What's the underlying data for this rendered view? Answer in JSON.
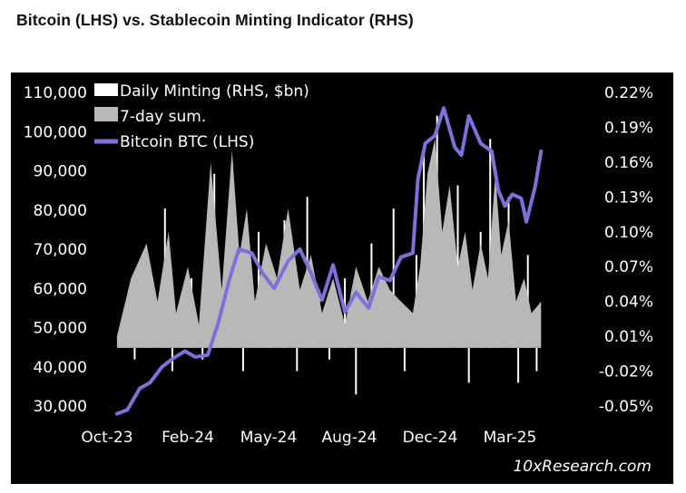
{
  "title": "Bitcoin (LHS) vs. Stablecoin Minting Indicator (RHS)",
  "source": "10xResearch.com",
  "colors": {
    "background": "#000000",
    "btc_line": "#7b72d9",
    "sum_area": "#b8b8b8",
    "daily_bars": "#ffffff"
  },
  "chart_data": {
    "type": "line",
    "left_axis": {
      "min": 30000,
      "max": 110000,
      "ticks": [
        "110,000",
        "100,000",
        "90,000",
        "80,000",
        "70,000",
        "60,000",
        "50,000",
        "40,000",
        "30,000"
      ]
    },
    "right_axis": {
      "min": -0.05,
      "max": 0.22,
      "ticks": [
        "0.22%",
        "0.19%",
        "0.16%",
        "0.13%",
        "0.10%",
        "0.07%",
        "0.04%",
        "0.01%",
        "-0.02%",
        "-0.05%"
      ]
    },
    "x_axis": {
      "ticks": [
        "Oct-23",
        "Feb-24",
        "May-24",
        "Aug-24",
        "Dec-24",
        "Mar-25"
      ]
    },
    "legend": {
      "placement": "top-left",
      "entries": [
        "Daily Minting (RHS, $bn)",
        "7-day sum.",
        "Bitcoin BTC (LHS)"
      ]
    },
    "series": [
      {
        "name": "Bitcoin BTC (LHS)",
        "axis": "left",
        "x": [
          "2023-10-01",
          "2023-10-15",
          "2023-11-01",
          "2023-11-15",
          "2023-12-01",
          "2023-12-15",
          "2024-01-01",
          "2024-01-15",
          "2024-02-01",
          "2024-02-15",
          "2024-03-01",
          "2024-03-14",
          "2024-04-01",
          "2024-04-15",
          "2024-05-01",
          "2024-05-20",
          "2024-06-05",
          "2024-06-20",
          "2024-07-05",
          "2024-07-20",
          "2024-08-05",
          "2024-08-20",
          "2024-09-06",
          "2024-09-20",
          "2024-10-05",
          "2024-10-20",
          "2024-11-05",
          "2024-11-12",
          "2024-11-22",
          "2024-12-05",
          "2024-12-17",
          "2025-01-01",
          "2025-01-10",
          "2025-01-20",
          "2025-02-05",
          "2025-02-20",
          "2025-03-01",
          "2025-03-10",
          "2025-03-20",
          "2025-04-01",
          "2025-04-08",
          "2025-04-20",
          "2025-04-28"
        ],
        "values": [
          28000,
          29000,
          34500,
          36000,
          40000,
          42000,
          44000,
          42500,
          43000,
          51000,
          62000,
          70000,
          69000,
          64000,
          60000,
          67000,
          70000,
          64000,
          57000,
          66000,
          54000,
          59000,
          55000,
          63000,
          62000,
          68000,
          69000,
          88000,
          97000,
          99000,
          106000,
          96000,
          94000,
          104000,
          97000,
          95000,
          85000,
          81000,
          84000,
          83000,
          77000,
          86000,
          95000
        ]
      },
      {
        "name": "7-day sum.",
        "axis": "right",
        "x": [
          "2023-10-01",
          "2023-10-20",
          "2023-11-10",
          "2023-11-25",
          "2023-12-10",
          "2023-12-20",
          "2024-01-05",
          "2024-01-20",
          "2024-02-05",
          "2024-02-20",
          "2024-03-05",
          "2024-03-15",
          "2024-03-25",
          "2024-04-05",
          "2024-04-20",
          "2024-05-05",
          "2024-05-20",
          "2024-06-05",
          "2024-06-20",
          "2024-07-05",
          "2024-07-20",
          "2024-08-05",
          "2024-08-20",
          "2024-09-05",
          "2024-09-20",
          "2024-10-05",
          "2024-10-20",
          "2024-11-05",
          "2024-11-15",
          "2024-11-25",
          "2024-12-05",
          "2024-12-15",
          "2024-12-25",
          "2025-01-05",
          "2025-01-15",
          "2025-01-25",
          "2025-02-05",
          "2025-02-15",
          "2025-02-25",
          "2025-03-05",
          "2025-03-15",
          "2025-03-25",
          "2025-04-05",
          "2025-04-15",
          "2025-04-28"
        ],
        "values": [
          0.01,
          0.06,
          0.09,
          0.04,
          0.1,
          0.03,
          0.07,
          0.02,
          0.16,
          0.05,
          0.17,
          0.08,
          0.12,
          0.04,
          0.09,
          0.06,
          0.12,
          0.05,
          0.08,
          0.03,
          0.06,
          0.02,
          0.07,
          0.04,
          0.07,
          0.05,
          0.04,
          0.03,
          0.07,
          0.15,
          0.18,
          0.1,
          0.14,
          0.07,
          0.1,
          0.05,
          0.09,
          0.06,
          0.15,
          0.08,
          0.11,
          0.04,
          0.06,
          0.03,
          0.04
        ]
      },
      {
        "name": "Daily Minting (RHS, $bn)",
        "axis": "right",
        "x": [
          "2023-10-10",
          "2023-10-25",
          "2023-11-15",
          "2023-12-05",
          "2023-12-15",
          "2024-01-10",
          "2024-01-25",
          "2024-02-10",
          "2024-02-22",
          "2024-03-05",
          "2024-03-12",
          "2024-03-20",
          "2024-04-10",
          "2024-04-25",
          "2024-05-15",
          "2024-06-01",
          "2024-06-15",
          "2024-07-01",
          "2024-07-15",
          "2024-08-05",
          "2024-08-20",
          "2024-09-10",
          "2024-09-25",
          "2024-10-10",
          "2024-10-25",
          "2024-11-10",
          "2024-11-20",
          "2024-11-28",
          "2024-12-08",
          "2024-12-20",
          "2025-01-05",
          "2025-01-20",
          "2025-02-05",
          "2025-02-18",
          "2025-03-01",
          "2025-03-15",
          "2025-03-28",
          "2025-04-10",
          "2025-04-22"
        ],
        "values": [
          0.02,
          -0.01,
          0.05,
          0.12,
          -0.02,
          0.06,
          -0.01,
          0.15,
          0.03,
          0.16,
          0.09,
          -0.02,
          0.1,
          0.04,
          0.11,
          -0.02,
          0.13,
          0.05,
          -0.01,
          0.06,
          -0.04,
          0.09,
          0.02,
          0.12,
          -0.02,
          0.08,
          0.17,
          0.12,
          0.2,
          0.09,
          0.14,
          -0.03,
          0.1,
          0.18,
          0.06,
          0.13,
          -0.03,
          0.08,
          -0.02
        ]
      }
    ]
  }
}
